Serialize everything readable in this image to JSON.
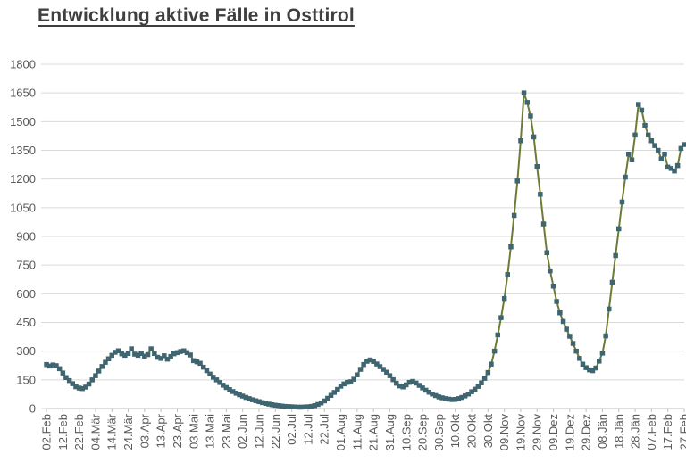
{
  "title": "Entwicklung aktive Fälle in Osttirol",
  "colors": {
    "line": "#6b7c34",
    "marker": "#3f6571",
    "gridline": "#d9d9d9",
    "axis_line": "#c0c0c0",
    "tick_label": "#595959",
    "title_text": "#3f3f3f",
    "background": "#ffffff"
  },
  "chart_data": {
    "type": "line",
    "title": "Entwicklung aktive Fälle in Osttirol",
    "xlabel": "",
    "ylabel": "",
    "ylim": [
      0,
      1800
    ],
    "y_ticks": [
      0,
      150,
      300,
      450,
      600,
      750,
      900,
      1050,
      1200,
      1350,
      1500,
      1650,
      1800
    ],
    "grid": "horizontal",
    "legend": "none",
    "marker_style": "square",
    "x_tick_interval_days": 10,
    "x_tick_labels": [
      "02.Feb",
      "12.Feb",
      "22.Feb",
      "04.Mär",
      "14.Mär",
      "24.Mär",
      "03.Apr",
      "13.Apr",
      "23.Apr",
      "03.Mai",
      "13.Mai",
      "23.Mai",
      "02.Jun",
      "12.Jun",
      "22.Jun",
      "02.Jul",
      "12.Jul",
      "22.Jul",
      "01.Aug",
      "11.Aug",
      "21.Aug",
      "31.Aug",
      "10.Sep",
      "20.Sep",
      "30.Sep",
      "10.Okt",
      "20.Okt",
      "30.Okt",
      "09.Nov",
      "19.Nov",
      "29.Nov",
      "09.Dez",
      "19.Dez",
      "29.Dez",
      "08.Jän",
      "18.Jän",
      "28.Jän",
      "07.Feb",
      "17.Feb",
      "27.Feb"
    ],
    "series": [
      {
        "start_day": 0,
        "step_days": 2,
        "values": [
          230,
          222,
          228,
          224,
          208,
          186,
          162,
          146,
          130,
          114,
          107,
          104,
          112,
          128,
          150,
          172,
          196,
          220,
          242,
          260,
          278,
          294,
          302,
          286,
          278,
          288,
          312,
          284,
          278,
          288,
          274,
          282,
          312,
          288,
          268,
          262,
          276,
          258,
          272,
          286,
          292,
          298,
          302,
          292,
          280,
          250,
          244,
          236,
          216,
          198,
          180,
          164,
          150,
          136,
          122,
          110,
          99,
          89,
          80,
          72,
          65,
          58,
          52,
          46,
          41,
          36,
          31,
          27,
          23,
          20,
          17,
          15,
          13,
          11,
          10,
          9,
          8,
          7,
          7,
          8,
          9,
          11,
          15,
          21,
          29,
          40,
          54,
          69,
          84,
          100,
          117,
          129,
          137,
          140,
          153,
          176,
          205,
          230,
          247,
          254,
          246,
          233,
          219,
          205,
          190,
          172,
          151,
          132,
          118,
          113,
          124,
          137,
          142,
          133,
          121,
          108,
          96,
          85,
          76,
          68,
          61,
          56,
          52,
          49,
          47,
          48,
          52,
          58,
          66,
          76,
          88,
          101,
          116,
          134,
          158,
          188,
          232,
          300,
          385,
          475,
          575,
          700,
          845,
          1010,
          1190,
          1400,
          1650,
          1600,
          1530,
          1420,
          1265,
          1120,
          965,
          815,
          720,
          640,
          560,
          500,
          455,
          415,
          378,
          340,
          300,
          262,
          232,
          214,
          202,
          198,
          212,
          248,
          290,
          380,
          520,
          660,
          800,
          940,
          1080,
          1210,
          1330,
          1300,
          1430,
          1590,
          1560,
          1480,
          1430,
          1400,
          1375,
          1350,
          1305,
          1330,
          1262,
          1255,
          1242,
          1270,
          1360,
          1380
        ]
      }
    ]
  }
}
